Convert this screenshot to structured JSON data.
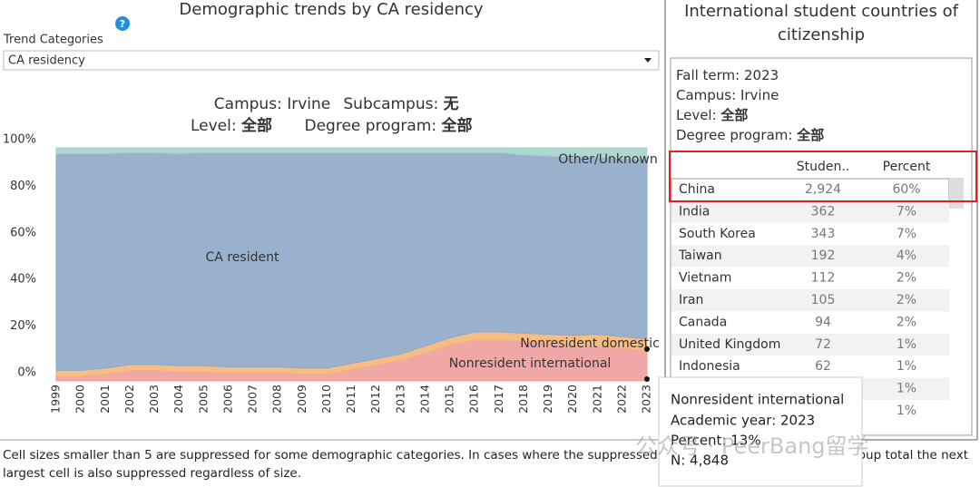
{
  "chart_data": {
    "type": "stacked-area",
    "title": "Demographic trends by CA residency",
    "x": [
      "1999",
      "2000",
      "2001",
      "2002",
      "2003",
      "2004",
      "2005",
      "2006",
      "2007",
      "2008",
      "2009",
      "2010",
      "2011",
      "2012",
      "2013",
      "2014",
      "2015",
      "2016",
      "2017",
      "2018",
      "2019",
      "2020",
      "2021",
      "2022",
      "2023"
    ],
    "series": [
      {
        "name": "Nonresident international",
        "color": "#ee9f9c",
        "values": [
          2,
          2,
          3,
          4.5,
          4.5,
          4,
          4,
          3.5,
          3.5,
          3.5,
          3,
          3,
          5,
          7,
          9,
          12,
          15.5,
          17.5,
          17.5,
          17,
          16,
          15,
          15,
          14,
          13
        ]
      },
      {
        "name": "Nonresident domestic",
        "color": "#f5b677",
        "values": [
          2.5,
          2.5,
          2.5,
          2.5,
          2.5,
          2.5,
          2.5,
          2.5,
          2.5,
          2.5,
          2.5,
          2.5,
          2.5,
          2.5,
          2.5,
          3,
          3,
          3.5,
          3.5,
          3.5,
          4,
          4.5,
          5,
          5,
          5
        ]
      },
      {
        "name": "CA resident",
        "color": "#8ea8c8",
        "values": [
          93,
          93,
          92,
          91,
          91,
          91,
          91.5,
          92,
          92,
          92,
          92.5,
          92.5,
          90.5,
          88.5,
          86.5,
          83,
          79.5,
          77,
          77,
          76.5,
          76.5,
          76.5,
          76,
          76.5,
          77
        ]
      },
      {
        "name": "Other/Unknown",
        "color": "#a5d3cb",
        "values": [
          2.5,
          2.5,
          2.5,
          2,
          2,
          2.5,
          2,
          2,
          2,
          2,
          2,
          2,
          2,
          2,
          2,
          2,
          2,
          2,
          2,
          3,
          3.5,
          4,
          4,
          4.5,
          5
        ]
      }
    ],
    "ylim": [
      0,
      100
    ],
    "yticks": [
      {
        "value": 0,
        "label": "0%"
      },
      {
        "value": 20,
        "label": "20%"
      },
      {
        "value": 40,
        "label": "40%"
      },
      {
        "value": 60,
        "label": "60%"
      },
      {
        "value": 80,
        "label": "80%"
      },
      {
        "value": 100,
        "label": "100%"
      }
    ]
  },
  "filter": {
    "label": "Trend Categories",
    "selected": "CA residency"
  },
  "subtitle": [
    {
      "label": "Campus: ",
      "value": "Irvine"
    },
    {
      "label": "Subcampus: ",
      "value": "无"
    },
    {
      "label": "Level: ",
      "value": "全部"
    },
    {
      "label": "Degree program: ",
      "value": "全部"
    }
  ],
  "panel": {
    "title": [
      "International student countries of",
      "citizenship"
    ],
    "filters": [
      {
        "label": "Fall term: ",
        "value": "2023"
      },
      {
        "label": "Campus: ",
        "value": "Irvine"
      },
      {
        "label": "Level: ",
        "value": "全部"
      },
      {
        "label": "Degree program: ",
        "value": "全部"
      }
    ],
    "table": {
      "header": {
        "students": "Studen..",
        "percent": "Percent"
      },
      "rows": [
        {
          "country": "China",
          "students": "2,924",
          "percent": "60%"
        },
        {
          "country": "India",
          "students": "362",
          "percent": "7%"
        },
        {
          "country": "South Korea",
          "students": "343",
          "percent": "7%"
        },
        {
          "country": "Taiwan",
          "students": "192",
          "percent": "4%"
        },
        {
          "country": "Vietnam",
          "students": "112",
          "percent": "2%"
        },
        {
          "country": "Iran",
          "students": "105",
          "percent": "2%"
        },
        {
          "country": "Canada",
          "students": "94",
          "percent": "2%"
        },
        {
          "country": "United Kingdom",
          "students": "72",
          "percent": "1%"
        },
        {
          "country": "Indonesia",
          "students": "62",
          "percent": "1%"
        },
        {
          "percent": "1%"
        },
        {
          "percent": "1%"
        }
      ]
    }
  },
  "tooltip": {
    "series": "Nonresident international",
    "year": "Academic year: 2023",
    "percent": "Percent: 13%",
    "n": "N: 4,848"
  },
  "footnote": {
    "line1": "Cell sizes smaller than 5 are suppressed for some demographic categories. In cases where the suppressed",
    "line1_end": "oup total the next",
    "line2": "largest cell is also suppressed regardless of size."
  },
  "watermark": "公众号 · PeerBang留学"
}
